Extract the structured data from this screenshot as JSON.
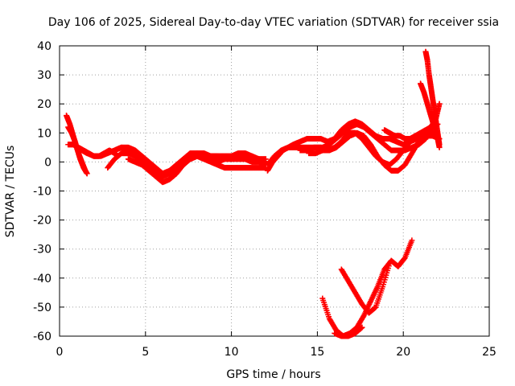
{
  "chart_data": {
    "type": "scatter",
    "title": "Day 106 of 2025, Sidereal Day-to-day VTEC variation (SDTVAR) for receiver ssia",
    "xlabel": "GPS time / hours",
    "ylabel": "SDTVAR / TECUs",
    "xlim": [
      0,
      25
    ],
    "ylim": [
      -60,
      40
    ],
    "xticks": [
      "0",
      "5",
      "10",
      "15",
      "20",
      "25"
    ],
    "yticks": [
      "40",
      "30",
      "20",
      "10",
      "0",
      "-10",
      "-20",
      "-30",
      "-40",
      "-50",
      "-60"
    ],
    "grid": true,
    "marker": "+",
    "color": "#ff0000",
    "series": [
      {
        "x": [
          0.4,
          0.6,
          0.8,
          1.0,
          1.2,
          1.4,
          1.6
        ],
        "y": [
          16,
          13,
          9,
          5,
          1,
          -2,
          -4
        ]
      },
      {
        "x": [
          0.5,
          0.7,
          0.9,
          1.1,
          1.3,
          1.5
        ],
        "y": [
          12,
          10,
          7,
          3,
          0,
          -3
        ]
      },
      {
        "x": [
          0.5,
          0.8,
          1.1,
          1.4,
          1.7,
          2.0,
          2.3,
          2.6,
          2.9,
          3.2,
          3.4
        ],
        "y": [
          6,
          6,
          5,
          4,
          3,
          2,
          2,
          3,
          4,
          3,
          2
        ]
      },
      {
        "x": [
          1.0,
          1.3,
          1.6,
          2.0,
          2.4,
          2.8,
          3.2,
          3.6,
          4.0,
          4.4,
          4.8,
          5.2,
          5.6,
          6.0,
          6.4,
          6.8,
          7.2,
          7.6,
          8.0,
          8.4,
          8.8,
          9.2,
          9.6,
          10.0,
          10.4,
          10.8,
          11.2,
          11.6,
          12.0
        ],
        "y": [
          5,
          4,
          3,
          2,
          2,
          3,
          4,
          5,
          4,
          2,
          0,
          -2,
          -3,
          -4,
          -3,
          -1,
          1,
          3,
          3,
          2,
          2,
          2,
          1,
          1,
          1,
          1,
          0,
          0,
          -1
        ]
      },
      {
        "x": [
          2.8,
          3.2,
          3.6,
          4.0,
          4.4,
          4.8,
          5.2,
          5.6,
          6.0,
          6.4,
          6.8,
          7.2,
          7.6,
          8.0,
          8.4,
          8.8,
          9.2,
          9.6,
          10.0,
          10.4,
          10.8,
          11.2,
          11.6,
          12.0
        ],
        "y": [
          -2,
          1,
          3,
          3,
          2,
          0,
          -2,
          -4,
          -5,
          -4,
          -2,
          0,
          2,
          3,
          3,
          2,
          2,
          2,
          2,
          2,
          2,
          1,
          1,
          0
        ]
      },
      {
        "x": [
          4.0,
          4.4,
          4.8,
          5.2,
          5.6,
          6.0,
          6.4,
          6.8,
          7.2,
          7.6,
          8.0,
          8.4,
          8.8,
          9.2,
          9.6,
          10.0,
          10.4,
          10.8,
          11.2,
          11.6,
          12.0
        ],
        "y": [
          1,
          0,
          -1,
          -3,
          -5,
          -7,
          -6,
          -4,
          -1,
          1,
          2,
          1,
          0,
          -1,
          -2,
          -2,
          -2,
          -2,
          -2,
          -2,
          -2
        ]
      },
      {
        "x": [
          3.2,
          3.6,
          4.0,
          4.4,
          4.8,
          5.2,
          5.6,
          6.0,
          6.4,
          6.8,
          7.2,
          7.6,
          8.0,
          8.4,
          8.8,
          9.2,
          9.6,
          10.0,
          10.4,
          10.8,
          11.2,
          11.6,
          12.0
        ],
        "y": [
          4,
          5,
          5,
          4,
          2,
          0,
          -2,
          -4,
          -4,
          -3,
          -1,
          1,
          2,
          2,
          1,
          0,
          1,
          2,
          3,
          3,
          2,
          1,
          1
        ]
      },
      {
        "x": [
          12.1,
          12.4,
          12.7,
          13.0,
          13.3,
          13.6,
          14.0,
          14.4,
          14.8,
          15.2,
          15.6,
          16.0,
          16.4,
          16.8,
          17.2,
          17.6,
          18.0,
          18.4,
          18.8,
          19.2,
          19.6,
          20.0,
          20.4,
          20.8,
          21.2,
          21.6,
          22.0
        ],
        "y": [
          -3,
          0,
          2,
          4,
          5,
          6,
          7,
          8,
          8,
          8,
          7,
          8,
          11,
          13,
          14,
          13,
          11,
          9,
          8,
          8,
          7,
          6,
          7,
          8,
          10,
          12,
          13
        ]
      },
      {
        "x": [
          12.1,
          12.5,
          12.9,
          13.3,
          13.7,
          14.1,
          14.5,
          14.9,
          15.3,
          15.7,
          16.1,
          16.5,
          16.9,
          17.3,
          17.7,
          18.1,
          18.5,
          18.9,
          19.3,
          19.7,
          20.1,
          20.5,
          20.9,
          21.3,
          21.7,
          22.1
        ],
        "y": [
          -1,
          2,
          4,
          5,
          5,
          5,
          5,
          5,
          5,
          6,
          8,
          10,
          12,
          13,
          12,
          10,
          8,
          6,
          4,
          4,
          4,
          5,
          6,
          8,
          12,
          20
        ]
      },
      {
        "x": [
          14.0,
          14.4,
          14.8,
          15.2,
          15.6,
          16.0,
          16.4,
          16.8,
          17.2,
          17.6,
          18.0,
          18.4,
          18.8,
          19.2,
          19.6,
          20.0,
          20.4,
          20.8,
          21.2,
          21.6,
          22.0
        ],
        "y": [
          4,
          4,
          5,
          5,
          4,
          5,
          7,
          10,
          10,
          8,
          5,
          2,
          0,
          -1,
          1,
          4,
          7,
          9,
          10,
          10,
          9
        ]
      },
      {
        "x": [
          14.5,
          14.9,
          15.3,
          15.7,
          16.1,
          16.5,
          16.9,
          17.3,
          17.7,
          18.1,
          18.5,
          18.9,
          19.3,
          19.7,
          20.1,
          20.5,
          20.9,
          21.3,
          21.7,
          22.1
        ],
        "y": [
          3,
          3,
          4,
          4,
          5,
          7,
          9,
          10,
          9,
          6,
          2,
          -1,
          -3,
          -3,
          -1,
          3,
          7,
          9,
          9,
          8
        ]
      },
      {
        "x": [
          18.9,
          19.2,
          19.5,
          19.8,
          20.1,
          20.4,
          20.7,
          21.0,
          21.3,
          21.6,
          21.9,
          22.1
        ],
        "y": [
          11,
          10,
          9,
          9,
          8,
          8,
          9,
          10,
          11,
          12,
          15,
          20
        ]
      },
      {
        "x": [
          21.0,
          21.2,
          21.4,
          21.6,
          21.8,
          22.0,
          22.1
        ],
        "y": [
          27,
          24,
          20,
          16,
          12,
          8,
          5
        ]
      },
      {
        "x": [
          21.3,
          21.4,
          21.5,
          21.6,
          21.7,
          21.8,
          21.9,
          22.0,
          22.1
        ],
        "y": [
          38,
          35,
          30,
          26,
          22,
          18,
          14,
          10,
          6
        ]
      },
      {
        "x": [
          15.3,
          15.7,
          16.1,
          16.5,
          16.9,
          17.3,
          17.7,
          18.1,
          18.5,
          18.9,
          19.3,
          19.7,
          20.1,
          20.5
        ],
        "y": [
          -47,
          -54,
          -58,
          -60,
          -59,
          -57,
          -53,
          -48,
          -43,
          -37,
          -34,
          -36,
          -33,
          -27
        ]
      },
      {
        "x": [
          16.4,
          16.8,
          17.2,
          17.6,
          18.0,
          18.4,
          18.8,
          19.2
        ],
        "y": [
          -37,
          -41,
          -45,
          -49,
          -52,
          -50,
          -43,
          -35
        ]
      },
      {
        "x": [
          16.0,
          16.4,
          16.8,
          17.2,
          17.6
        ],
        "y": [
          -59,
          -60,
          -60,
          -59,
          -57
        ]
      }
    ]
  }
}
